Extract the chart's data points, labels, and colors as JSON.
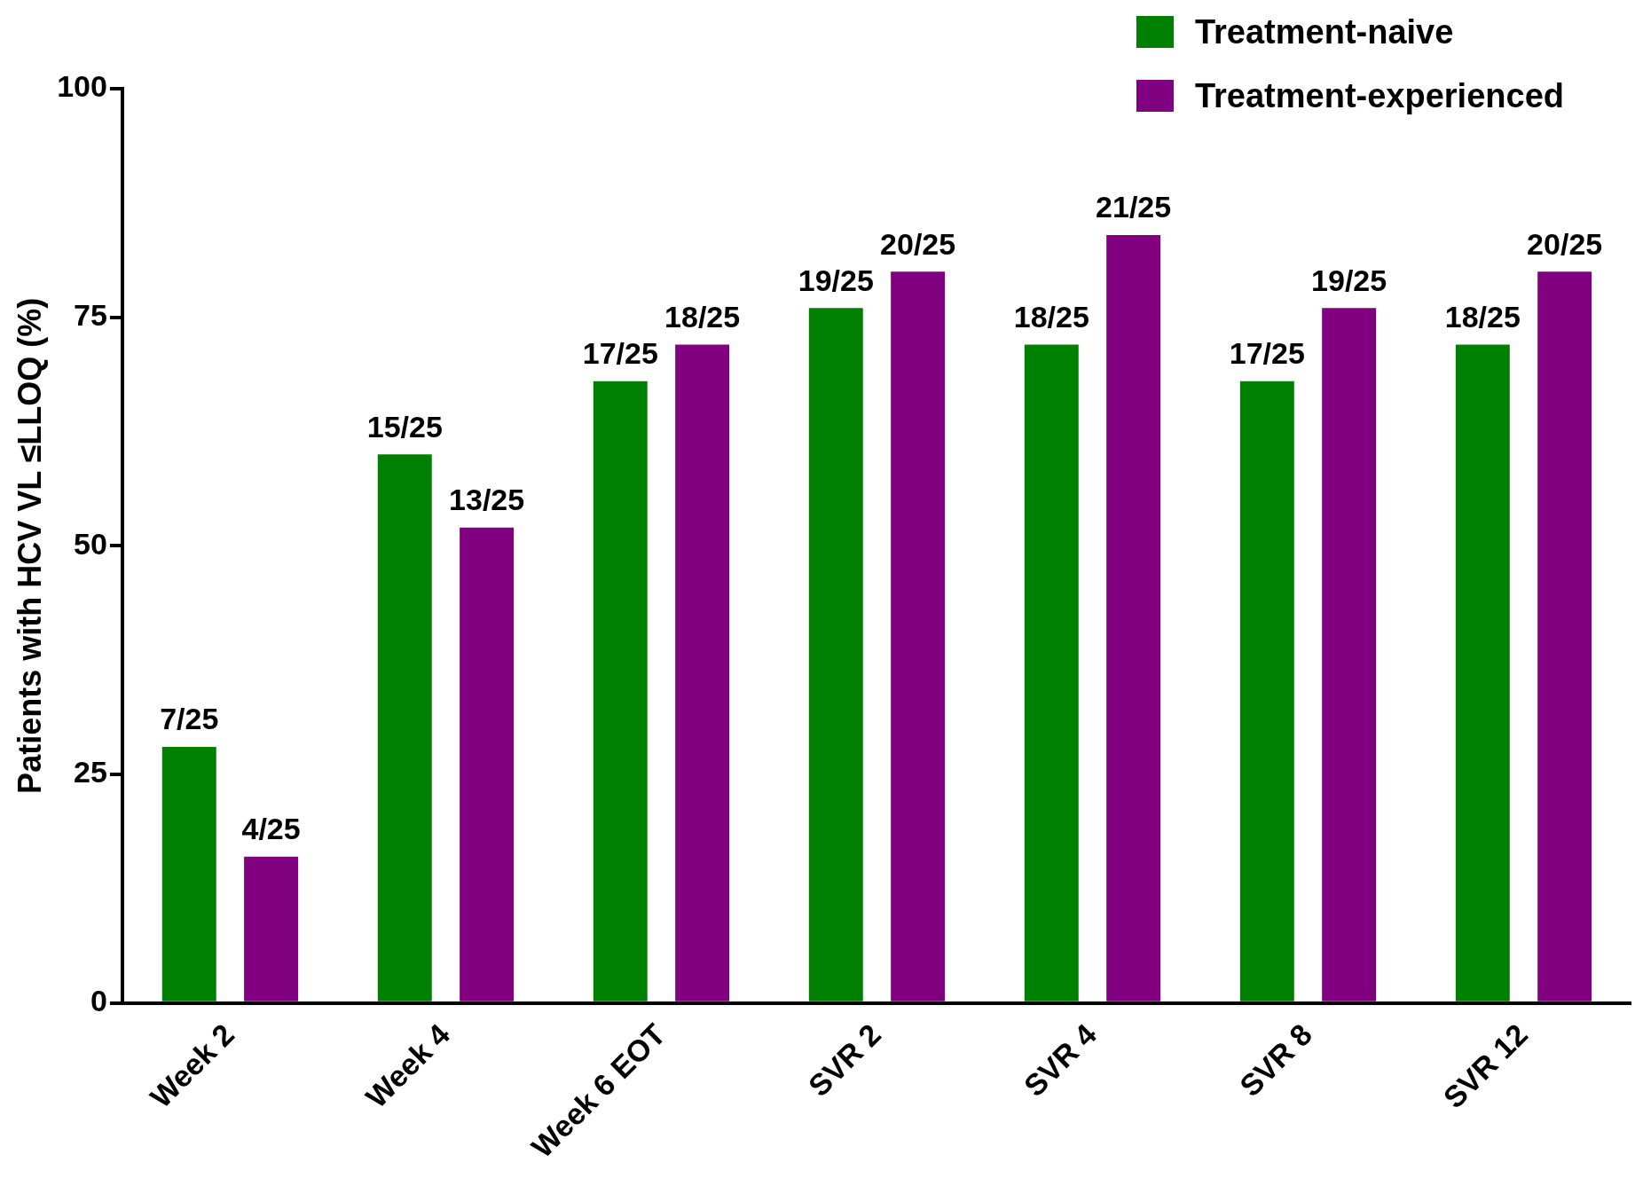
{
  "chart_data": {
    "type": "bar",
    "ylabel": "Patients with HCV VL ≤LLOQ (%)",
    "categories": [
      "Week 2",
      "Week 4",
      "Week 6 EOT",
      "SVR 2",
      "SVR 4",
      "SVR 8",
      "SVR 12"
    ],
    "series": [
      {
        "name": "Treatment-naive",
        "color": "#008000",
        "values": [
          28,
          60,
          68,
          76,
          72,
          68,
          72
        ],
        "value_labels": [
          "7/25",
          "15/25",
          "17/25",
          "19/25",
          "18/25",
          "17/25",
          "18/25"
        ]
      },
      {
        "name": "Treatment-experienced",
        "color": "#800080",
        "values": [
          16,
          52,
          72,
          80,
          84,
          76,
          80
        ],
        "value_labels": [
          "4/25",
          "13/25",
          "18/25",
          "20/25",
          "21/25",
          "19/25",
          "20/25"
        ]
      }
    ],
    "ylim": [
      0,
      100
    ],
    "yticks": [
      0,
      25,
      50,
      75,
      100
    ],
    "grid": false,
    "legend": "top right"
  }
}
